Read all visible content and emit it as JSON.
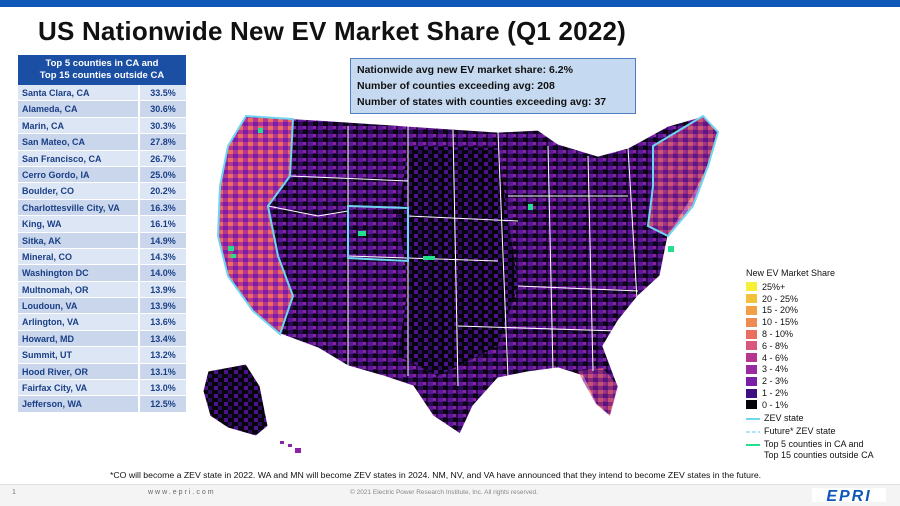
{
  "title": "US Nationwide New EV Market Share (Q1 2022)",
  "table": {
    "header_line1": "Top 5 counties in CA and",
    "header_line2": "Top 15  counties outside CA",
    "rows": [
      {
        "name": "Santa Clara, CA",
        "share": "33.5%"
      },
      {
        "name": "Alameda, CA",
        "share": "30.6%"
      },
      {
        "name": "Marin, CA",
        "share": "30.3%"
      },
      {
        "name": "San Mateo, CA",
        "share": "27.8%"
      },
      {
        "name": "San Francisco, CA",
        "share": "26.7%"
      },
      {
        "name": "Cerro Gordo, IA",
        "share": "25.0%"
      },
      {
        "name": "Boulder, CO",
        "share": "20.2%"
      },
      {
        "name": "Charlottesville City, VA",
        "share": "16.3%"
      },
      {
        "name": "King, WA",
        "share": "16.1%"
      },
      {
        "name": "Sitka, AK",
        "share": "14.9%"
      },
      {
        "name": "Mineral, CO",
        "share": "14.3%"
      },
      {
        "name": "Washington DC",
        "share": "14.0%"
      },
      {
        "name": "Multnomah, OR",
        "share": "13.9%"
      },
      {
        "name": "Loudoun, VA",
        "share": "13.9%"
      },
      {
        "name": "Arlington, VA",
        "share": "13.6%"
      },
      {
        "name": "Howard, MD",
        "share": "13.4%"
      },
      {
        "name": "Summit, UT",
        "share": "13.2%"
      },
      {
        "name": "Hood River, OR",
        "share": "13.1%"
      },
      {
        "name": "Fairfax City, VA",
        "share": "13.0%"
      },
      {
        "name": "Jefferson, WA",
        "share": "12.5%"
      }
    ]
  },
  "stats": {
    "line1": "Nationwide avg new EV market share: 6.2%",
    "line2": "Number of counties exceeding avg: 208",
    "line3": "Number of states with counties exceeding avg: 37"
  },
  "legend": {
    "title": "New EV Market Share",
    "bins": [
      {
        "label": "25%+",
        "color": "#f7f03a"
      },
      {
        "label": "20 - 25%",
        "color": "#f4c23a"
      },
      {
        "label": "15 - 20%",
        "color": "#f2a046"
      },
      {
        "label": "10 - 15%",
        "color": "#ef8a52"
      },
      {
        "label": "8 - 10%",
        "color": "#ea6e5f"
      },
      {
        "label": "6 - 8%",
        "color": "#d9577a"
      },
      {
        "label": "4 - 6%",
        "color": "#b6358f"
      },
      {
        "label": "3 - 4%",
        "color": "#9a2aa2"
      },
      {
        "label": "2 - 3%",
        "color": "#7a1fa8"
      },
      {
        "label": "1 - 2%",
        "color": "#3d0f80"
      },
      {
        "label": "0 - 1%",
        "color": "#050308"
      }
    ],
    "zev_state": {
      "label": "ZEV state",
      "color": "#6fd6f2"
    },
    "future_zev": {
      "label": "Future* ZEV state",
      "color": "#aee6f6"
    },
    "top_counties": {
      "label_line1": "Top 5 counties in CA and",
      "label_line2": "Top 15 counties outside CA",
      "color": "#22e08c"
    }
  },
  "footnote": "*CO will become a ZEV state in 2022. WA and MN will become ZEV states in 2024. NM, NV, and VA have announced that they intend to become ZEV states in the future.",
  "footer": {
    "page": "1",
    "url": "www.epri.com",
    "copyright": "© 2021 Electric Power Research Institute, Inc. All rights reserved.",
    "logo": "EPRI"
  }
}
